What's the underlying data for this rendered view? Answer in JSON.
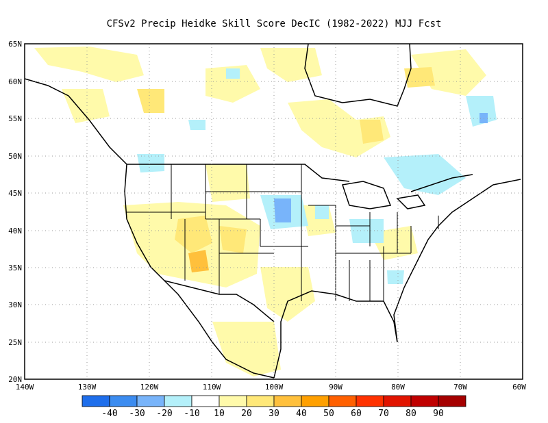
{
  "title": "CFSv2 Precip Heidke Skill Score DecIC (1982-2022) MJJ Fcst",
  "map": {
    "lat_labels": [
      "65N",
      "60N",
      "55N",
      "50N",
      "45N",
      "40N",
      "35N",
      "30N",
      "25N",
      "20N"
    ],
    "lon_labels": [
      "140W",
      "130W",
      "120W",
      "110W",
      "100W",
      "90W",
      "80W",
      "70W",
      "60W"
    ],
    "extent": {
      "lon": [
        -140,
        -60
      ],
      "lat": [
        20,
        65
      ]
    },
    "grid": "dotted"
  },
  "colorbar": {
    "labels": [
      "-40",
      "-30",
      "-20",
      "-10",
      "10",
      "20",
      "30",
      "40",
      "50",
      "60",
      "70",
      "80",
      "90"
    ],
    "colors": [
      "#1e6eeb",
      "#3c8cf0",
      "#78b4fa",
      "#b4f0fa",
      "#ffffff",
      "#fffaaa",
      "#ffe878",
      "#ffc03c",
      "#ffa000",
      "#ff6000",
      "#ff3200",
      "#e11400",
      "#c00000",
      "#a50000"
    ]
  },
  "palette": {
    "land_outline": "#000000",
    "positive": "#fffaaa",
    "negative": "#b4f0fa"
  }
}
